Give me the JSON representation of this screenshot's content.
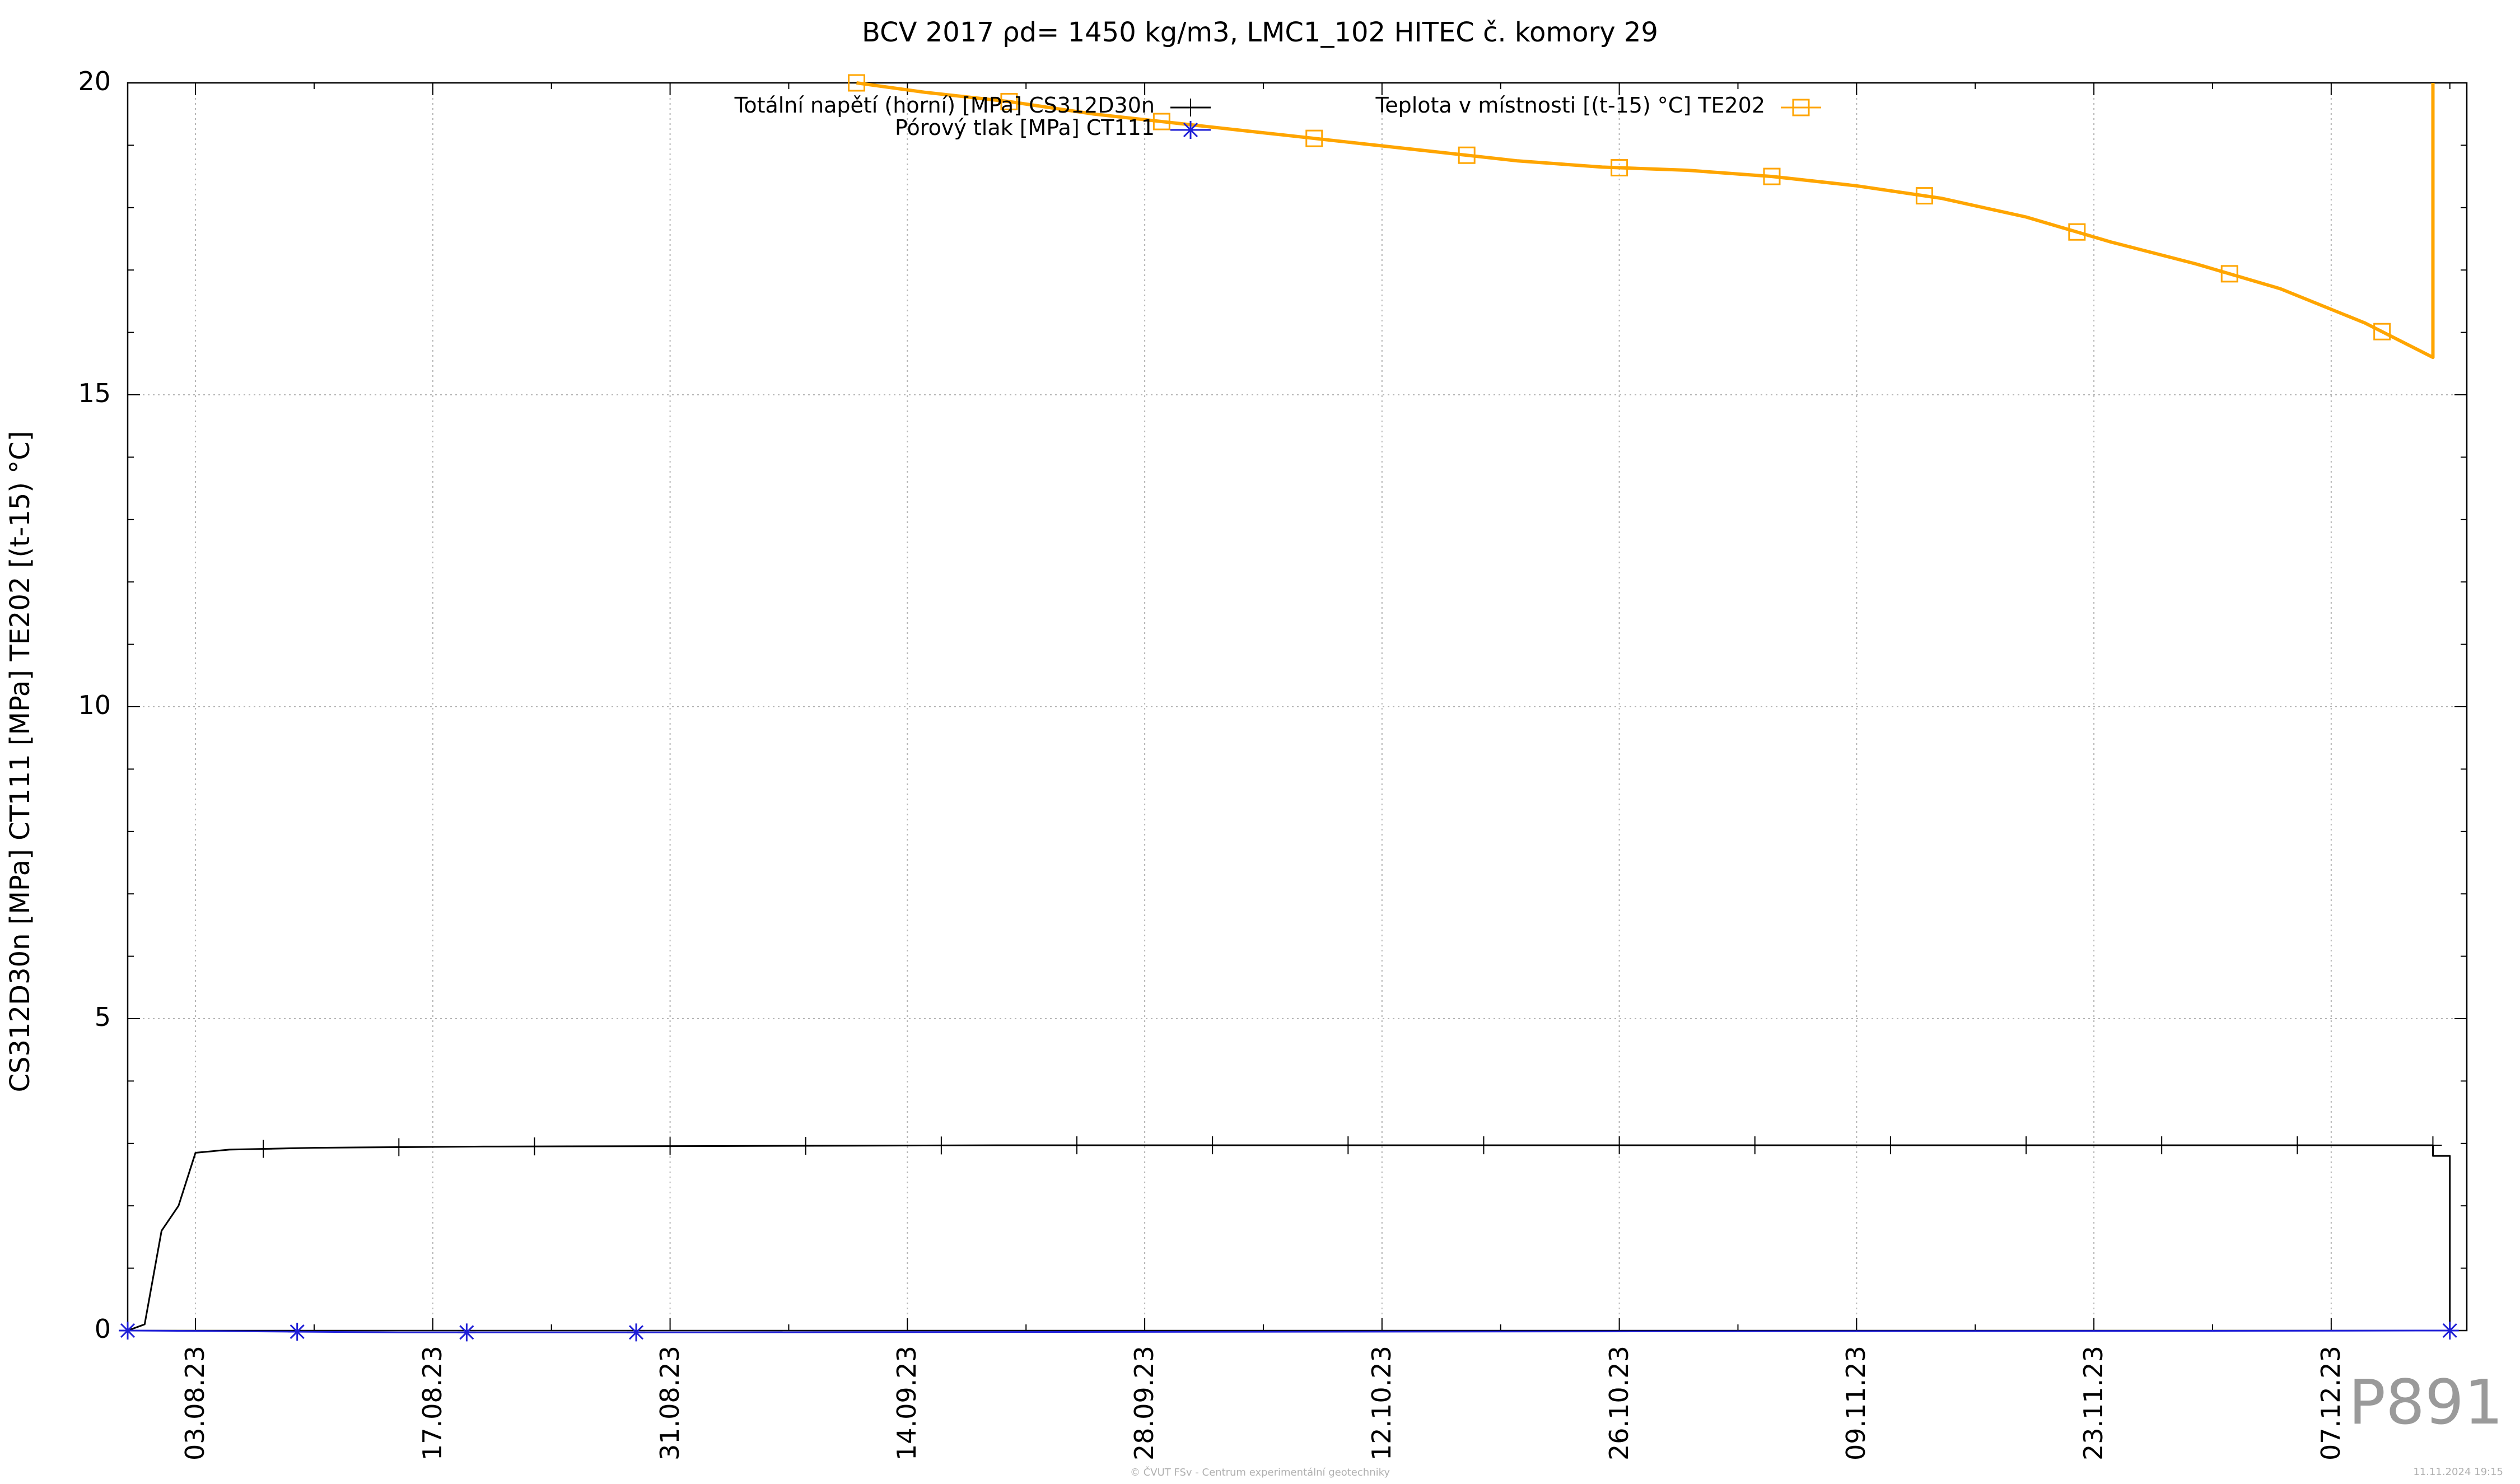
{
  "chart_data": {
    "type": "line",
    "title": "BCV 2017 ρd= 1450 kg/m3, LMC1_102 HITEC č. komory 29",
    "ylabel": "CS312D30n [MPa] CT111 [MPa] TE202 [(t-15) °C]",
    "xlabel": "",
    "ylim": [
      0,
      20
    ],
    "yticks": [
      "0",
      "5",
      "10",
      "15",
      "20"
    ],
    "x_range": [
      "2023-07-30",
      "2023-12-15"
    ],
    "xticks": [
      "03.08.23",
      "17.08.23",
      "31.08.23",
      "14.09.23",
      "28.09.23",
      "12.10.23",
      "26.10.23",
      "09.11.23",
      "23.11.23",
      "07.12.23"
    ],
    "grid": true,
    "legend_placement": "top",
    "series": [
      {
        "name": "Totální napětí (horní) [MPa] CS312D30n",
        "color": "#000000",
        "marker": "plus",
        "points": [
          [
            "2023-07-30",
            0.0
          ],
          [
            "2023-07-31",
            0.1
          ],
          [
            "2023-08-01",
            1.6
          ],
          [
            "2023-08-02",
            2.0
          ],
          [
            "2023-08-03",
            2.85
          ],
          [
            "2023-08-05",
            2.9
          ],
          [
            "2023-08-10",
            2.93
          ],
          [
            "2023-08-20",
            2.95
          ],
          [
            "2023-09-05",
            2.96
          ],
          [
            "2023-09-20",
            2.97
          ],
          [
            "2023-10-05",
            2.97
          ],
          [
            "2023-10-20",
            2.97
          ],
          [
            "2023-11-05",
            2.97
          ],
          [
            "2023-11-20",
            2.97
          ],
          [
            "2023-12-05",
            2.97
          ],
          [
            "2023-12-13",
            2.97
          ],
          [
            "2023-12-13",
            2.8
          ],
          [
            "2023-12-14",
            2.8
          ],
          [
            "2023-12-14",
            0.0
          ]
        ]
      },
      {
        "name": "Pórový tlak [MPa] CT111",
        "color": "#1f1fd6",
        "marker": "star",
        "points": [
          [
            "2023-07-30",
            0.0
          ],
          [
            "2023-08-05",
            -0.01
          ],
          [
            "2023-08-10",
            -0.02
          ],
          [
            "2023-08-15",
            -0.03
          ],
          [
            "2023-08-20",
            -0.03
          ],
          [
            "2023-08-25",
            -0.03
          ],
          [
            "2023-08-30",
            -0.03
          ],
          [
            "2023-12-14",
            0.0
          ]
        ]
      },
      {
        "name": "Teplota v místnosti [(t-15) °C] TE202",
        "color": "#ffa500",
        "marker": "square",
        "points": [
          [
            "2023-09-11",
            20.0
          ],
          [
            "2023-09-15",
            19.85
          ],
          [
            "2023-09-20",
            19.7
          ],
          [
            "2023-09-25",
            19.5
          ],
          [
            "2023-09-30",
            19.35
          ],
          [
            "2023-10-05",
            19.2
          ],
          [
            "2023-10-10",
            19.05
          ],
          [
            "2023-10-15",
            18.9
          ],
          [
            "2023-10-20",
            18.75
          ],
          [
            "2023-10-25",
            18.65
          ],
          [
            "2023-10-30",
            18.6
          ],
          [
            "2023-11-04",
            18.5
          ],
          [
            "2023-11-09",
            18.35
          ],
          [
            "2023-11-14",
            18.15
          ],
          [
            "2023-11-19",
            17.85
          ],
          [
            "2023-11-24",
            17.45
          ],
          [
            "2023-11-29",
            17.1
          ],
          [
            "2023-12-04",
            16.7
          ],
          [
            "2023-12-09",
            16.15
          ],
          [
            "2023-12-13",
            15.6
          ],
          [
            "2023-12-13",
            20.0
          ]
        ]
      }
    ]
  },
  "footer": {
    "left": "© ČVUT FSv - Centrum experimentální geotechniky",
    "right": "11.11.2024 19:15",
    "badge": "P891"
  }
}
